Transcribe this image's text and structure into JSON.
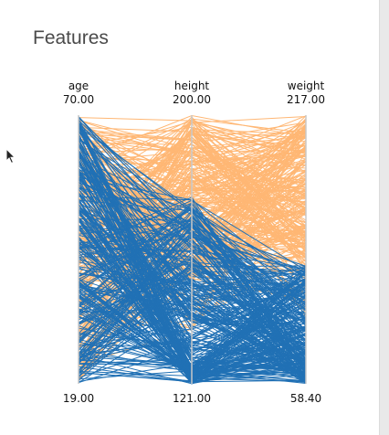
{
  "card": {
    "title": "Features"
  },
  "chart_data": {
    "type": "parallel_coordinates",
    "axes": [
      {
        "name": "age",
        "max_label": "70.00",
        "min_label": "19.00",
        "range": [
          19.0,
          70.0
        ]
      },
      {
        "name": "height",
        "max_label": "200.00",
        "min_label": "121.00",
        "range": [
          121.0,
          200.0
        ]
      },
      {
        "name": "weight",
        "max_label": "217.00",
        "min_label": "58.40",
        "range": [
          58.4,
          217.0
        ]
      }
    ],
    "series": [
      {
        "color": "#ffb774"
      },
      {
        "color": "#2171b5"
      }
    ],
    "grid": false
  },
  "colors": {
    "orange": "#ffb774",
    "blue": "#2171b5",
    "axis": "#c8c8c8"
  },
  "icons": {
    "cursor": "mouse-pointer-icon"
  }
}
